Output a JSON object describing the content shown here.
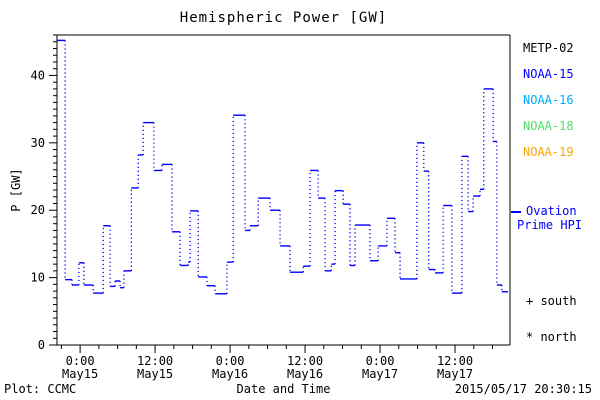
{
  "title": "Hemispheric Power [GW]",
  "axes": {
    "ylabel": "P [GW]",
    "xlabel": "Date and Time"
  },
  "legend": {
    "items": [
      {
        "label": "METP-02",
        "color": "#000000"
      },
      {
        "label": "NOAA-15",
        "color": "#0000ff"
      },
      {
        "label": "NOAA-16",
        "color": "#00aaff"
      },
      {
        "label": "NOAA-18",
        "color": "#55dd66"
      },
      {
        "label": "NOAA-19",
        "color": "#ffa500"
      }
    ]
  },
  "annotations": {
    "ovation_line1": "Ovation",
    "ovation_line2": "Prime HPI",
    "ovation_color": "#0000ff",
    "south_label": "+ south",
    "north_label": "* north"
  },
  "footer": {
    "left": "Plot: CCMC",
    "right": "2015/05/17 20:30:15"
  },
  "chart_data": {
    "type": "line",
    "subtype": "dotted-step",
    "title": "Hemispheric Power [GW]",
    "xlabel": "Date and Time",
    "ylabel": "P [GW]",
    "x_unit": "hours since 2015-05-15 00:00 UT",
    "xlim": [
      -3.7,
      68.8
    ],
    "ylim": [
      0,
      46
    ],
    "grid": false,
    "legend_position": "right",
    "x_major_ticks": [
      0,
      12,
      24,
      36,
      48,
      60
    ],
    "x_tick_labels": [
      [
        "0:00",
        "May15"
      ],
      [
        "12:00",
        "May15"
      ],
      [
        "0:00",
        "May16"
      ],
      [
        "12:00",
        "May16"
      ],
      [
        "0:00",
        "May17"
      ],
      [
        "12:00",
        "May17"
      ]
    ],
    "x_minor_step": 3,
    "y_major_ticks": [
      0,
      10,
      20,
      30,
      40
    ],
    "y_minor_step": 1,
    "series": [
      {
        "name": "Ovation Prime HPI",
        "color": "#0000ff",
        "end_x": 68.5,
        "x": [
          -3.7,
          -2.4,
          -1.3,
          -0.2,
          0.6,
          2.1,
          3.7,
          4.8,
          5.6,
          6.4,
          7.0,
          8.2,
          9.3,
          10.1,
          11.8,
          13.1,
          14.7,
          16.0,
          17.3,
          17.6,
          18.9,
          20.3,
          21.6,
          23.5,
          24.5,
          26.4,
          27.2,
          28.5,
          30.4,
          32.0,
          33.6,
          35.7,
          36.8,
          38.1,
          39.2,
          40.2,
          40.8,
          42.1,
          43.2,
          44.0,
          46.4,
          47.7,
          49.1,
          50.4,
          51.2,
          53.9,
          55.0,
          55.8,
          56.8,
          58.1,
          59.5,
          61.1,
          62.1,
          62.9,
          64.0,
          64.6,
          66.1,
          66.7,
          67.5
        ],
        "y": [
          45.2,
          9.7,
          8.9,
          12.2,
          8.9,
          7.7,
          17.7,
          8.7,
          9.5,
          8.5,
          11.0,
          23.3,
          28.2,
          33.0,
          25.9,
          26.8,
          16.8,
          11.8,
          12.3,
          19.9,
          10.1,
          8.8,
          7.6,
          12.3,
          34.1,
          17.0,
          17.7,
          21.8,
          20.0,
          14.7,
          10.8,
          11.7,
          25.9,
          21.8,
          11.0,
          12.0,
          22.9,
          20.9,
          11.8,
          17.8,
          12.5,
          14.7,
          18.8,
          13.7,
          9.8,
          30.0,
          25.8,
          11.2,
          10.7,
          20.7,
          7.7,
          28.0,
          19.8,
          22.1,
          23.1,
          38.0,
          30.2,
          8.9,
          7.9
        ]
      }
    ]
  }
}
